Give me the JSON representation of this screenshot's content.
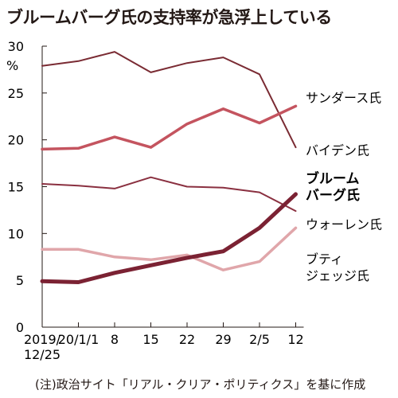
{
  "chart_data": {
    "type": "line",
    "title": "ブルームバーグ氏の支持率が急浮上している",
    "unit": "%",
    "source": "(注)政治サイト「リアル・クリア・ポリティクス」を基に作成",
    "x_labels": [
      "2019/\n12/25",
      "20/1/1",
      "8",
      "15",
      "22",
      "29",
      "2/5",
      "12"
    ],
    "y_ticks": [
      0,
      5,
      10,
      15,
      20,
      25,
      30
    ],
    "ylim": [
      0,
      30
    ],
    "grid": false,
    "series": [
      {
        "name": "サンダース氏",
        "label_lines": [
          "サンダース氏"
        ],
        "bold": false,
        "color": "#c4545f",
        "width": 3.5,
        "values": [
          19.0,
          19.1,
          20.3,
          19.2,
          21.7,
          23.3,
          21.8,
          23.6
        ]
      },
      {
        "name": "バイデン氏",
        "label_lines": [
          "バイデン氏"
        ],
        "bold": false,
        "color": "#7a2b33",
        "width": 2,
        "values": [
          27.9,
          28.4,
          29.4,
          27.2,
          28.2,
          28.8,
          27.0,
          19.2
        ]
      },
      {
        "name": "ブルームバーグ氏",
        "label_lines": [
          "ブルーム",
          "バーグ氏"
        ],
        "bold": true,
        "color": "#7b2233",
        "width": 5,
        "values": [
          4.9,
          4.8,
          5.8,
          6.6,
          7.4,
          8.1,
          10.6,
          14.2
        ]
      },
      {
        "name": "ウォーレン氏",
        "label_lines": [
          "ウォーレン氏"
        ],
        "bold": false,
        "color": "#8a3040",
        "width": 2,
        "values": [
          15.3,
          15.1,
          14.8,
          16.0,
          15.0,
          14.9,
          14.4,
          12.4
        ]
      },
      {
        "name": "ブティジェッジ氏",
        "label_lines": [
          "ブティ",
          "ジェッジ氏"
        ],
        "bold": false,
        "color": "#e0a6aa",
        "width": 3.5,
        "values": [
          8.3,
          8.3,
          7.5,
          7.2,
          7.7,
          6.1,
          7.0,
          10.6
        ]
      }
    ]
  }
}
